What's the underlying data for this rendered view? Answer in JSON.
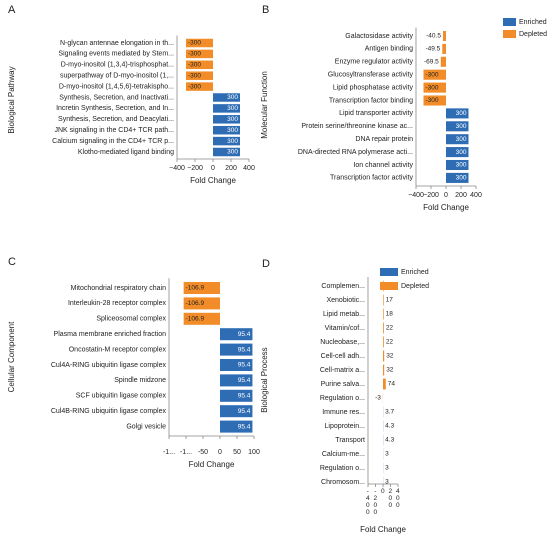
{
  "chart_data": [
    {
      "type": "bar",
      "orientation": "horizontal",
      "panel": "A",
      "ylabel": "Biological Pathway",
      "xlabel": "Fold Change",
      "categories": [
        "N-glycan antennae elongation in th...",
        "Signaling events mediated by Stem...",
        "D-myo-inositol (1,3,4)-trisphosphat...",
        "superpathway of D-myo-inositol (1,...",
        "D-myo-inositol (1,4,5,6)-tetrakispho...",
        "Synthesis, Secretion, and Inactivati...",
        "Incretin Synthesis, Secretion, and In...",
        "Synthesis, Secretion, and Deacylati...",
        "JNK signaling in the CD4+ TCR path...",
        "Calcium signaling in the CD4+ TCR p...",
        "Klotho-mediated ligand binding"
      ],
      "values": [
        -300,
        -300,
        -300,
        -300,
        -300,
        300,
        300,
        300,
        300,
        300,
        300
      ],
      "colors": [
        "#f28c28",
        "#f28c28",
        "#f28c28",
        "#f28c28",
        "#f28c28",
        "#2e6db4",
        "#2e6db4",
        "#2e6db4",
        "#2e6db4",
        "#2e6db4",
        "#2e6db4"
      ],
      "xlim": [
        -400,
        400
      ],
      "xticks": [
        {
          "value": -400,
          "label": "−400"
        },
        {
          "value": -200,
          "label": "−200"
        },
        0,
        200,
        400
      ]
    },
    {
      "type": "bar",
      "orientation": "horizontal",
      "panel": "B",
      "ylabel": "Molecular Function",
      "xlabel": "Fold Change",
      "categories": [
        "Galactosidase activity",
        "Antigen binding",
        "Enzyme regulator activity",
        "Glucosyltransferase activity",
        "Lipid phosphatase activity",
        "Transcription factor binding",
        "Lipid transporter activity",
        "Protein serine/threonine kinase ac...",
        "DNA repair protein",
        "DNA-directed RNA polymerase acti...",
        "Ion channel activity",
        "Transcription factor activity"
      ],
      "values": [
        -40.5,
        -49.5,
        -69.5,
        -300,
        -300,
        -300,
        300,
        300,
        300,
        300,
        300,
        300
      ],
      "colors": [
        "#f28c28",
        "#f28c28",
        "#f28c28",
        "#f28c28",
        "#f28c28",
        "#f28c28",
        "#2e6db4",
        "#2e6db4",
        "#2e6db4",
        "#2e6db4",
        "#2e6db4",
        "#2e6db4"
      ],
      "xlim": [
        -400,
        400
      ],
      "xticks": [
        {
          "value": -400,
          "label": "−400"
        },
        {
          "value": -200,
          "label": "−200"
        },
        0,
        200,
        400
      ],
      "legend": [
        {
          "name": "Enriched",
          "color": "#2e6db4"
        },
        {
          "name": "Depleted",
          "color": "#f28c28"
        }
      ],
      "legend_loc": "upper right"
    },
    {
      "type": "bar",
      "orientation": "horizontal",
      "panel": "C",
      "ylabel": "Cellular Component",
      "xlabel": "Fold Change",
      "categories": [
        "Mitochondrial respiratory chain",
        "Interleukin-28 receptor complex",
        "Spliceosomal complex",
        "Plasma membrane enriched fraction",
        "Oncostatin-M receptor complex",
        "Cul4A-RING ubiquitin ligase complex",
        "Spindle midzone",
        "SCF ubiquitin ligase complex",
        "Cul4B-RING ubiquitin ligase complex",
        "Golgi vesicle"
      ],
      "values": [
        -106.9,
        -106.9,
        -106.9,
        95.4,
        95.4,
        95.4,
        95.4,
        95.4,
        95.4,
        95.4
      ],
      "colors": [
        "#f28c28",
        "#f28c28",
        "#f28c28",
        "#2e6db4",
        "#2e6db4",
        "#2e6db4",
        "#2e6db4",
        "#2e6db4",
        "#2e6db4",
        "#2e6db4"
      ],
      "xlim": [
        -150,
        100
      ],
      "xticks": [
        {
          "value": -150,
          "label": "-1..."
        },
        {
          "value": -100,
          "label": "-1..."
        },
        -50,
        0,
        50,
        100
      ]
    },
    {
      "type": "bar",
      "orientation": "horizontal",
      "panel": "D",
      "ylabel": "Biological Process",
      "xlabel": "Fold Change",
      "categories": [
        "Complemen...",
        "Xenobiotic...",
        "Lipid metab...",
        "Vitamin/cof...",
        "Nucleobase,...",
        "Cell-cell adh...",
        "Cell-matrix a...",
        "Purine salva...",
        "Regulation o...",
        "Immune res...",
        "Lipoprotein...",
        "Transport",
        "Calcium-me...",
        "Regulation o...",
        "Chromosom..."
      ],
      "values": [
        16,
        17,
        18,
        22,
        22,
        32,
        32,
        74,
        -3,
        3.7,
        4.3,
        4.3,
        3,
        3,
        3
      ],
      "colors": [
        "#f28c28",
        "#f28c28",
        "#f28c28",
        "#f28c28",
        "#f28c28",
        "#f28c28",
        "#f28c28",
        "#f28c28",
        "#f28c28",
        "#2e6db4",
        "#2e6db4",
        "#2e6db4",
        "#2e6db4",
        "#2e6db4",
        "#2e6db4"
      ],
      "xlim": [
        -400,
        400
      ],
      "xticks": [
        -400,
        -200,
        0,
        200,
        400
      ],
      "legend": [
        {
          "name": "Enriched",
          "color": "#2e6db4"
        },
        {
          "name": "Depleted",
          "color": "#f28c28"
        }
      ],
      "legend_loc": "upper right"
    }
  ]
}
